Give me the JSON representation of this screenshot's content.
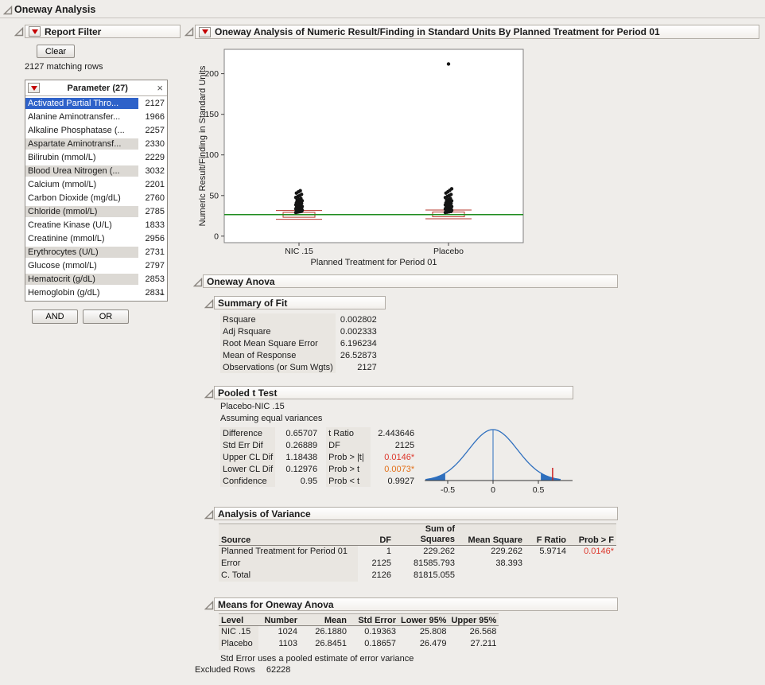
{
  "window": {
    "title": "Oneway Analysis"
  },
  "colors": {
    "selection_blue": "#2e62c9",
    "significant_red": "#dd372c",
    "significant_orange": "#e2711a",
    "grand_mean_green": "#1f8c1f",
    "box_red": "#b5372e",
    "curve_blue": "#2e6fbe",
    "red_triangle": "#c40000",
    "point_black": "#151515"
  },
  "filter": {
    "title": "Report Filter",
    "clear_label": "Clear",
    "matching_rows": "2127 matching rows",
    "list_title": "Parameter (27)",
    "close_glyph": "×",
    "scroll_down_glyph": "⌄",
    "and_label": "AND",
    "or_label": "OR",
    "items": [
      {
        "label": "Activated Partial Thro...",
        "count": "2127"
      },
      {
        "label": "Alanine Aminotransfer...",
        "count": "1966"
      },
      {
        "label": "Alkaline Phosphatase (...",
        "count": "2257"
      },
      {
        "label": "Aspartate Aminotransf...",
        "count": "2330"
      },
      {
        "label": "Bilirubin (mmol/L)",
        "count": "2229"
      },
      {
        "label": "Blood Urea Nitrogen (...",
        "count": "3032"
      },
      {
        "label": "Calcium (mmol/L)",
        "count": "2201"
      },
      {
        "label": "Carbon Dioxide (mg/dL)",
        "count": "2760"
      },
      {
        "label": "Chloride (mmol/L)",
        "count": "2785"
      },
      {
        "label": "Creatine Kinase (U/L)",
        "count": "1833"
      },
      {
        "label": "Creatinine (mmol/L)",
        "count": "2956"
      },
      {
        "label": "Erythrocytes (U/L)",
        "count": "2731"
      },
      {
        "label": "Glucose (mmol/L)",
        "count": "2797"
      },
      {
        "label": "Hematocrit (g/dL)",
        "count": "2853"
      },
      {
        "label": "Hemoglobin (g/dL)",
        "count": "2831"
      }
    ]
  },
  "report": {
    "title": "Oneway Analysis of Numeric Result/Finding in Standard Units By Planned Treatment for Period 01",
    "excluded_rows_label": "Excluded Rows",
    "excluded_rows_value": "62228"
  },
  "chart_data": [
    {
      "id": "oneway-plot",
      "type": "scatter",
      "title": "Oneway Analysis of Numeric Result/Finding in Standard Units By Planned Treatment for Period 01",
      "xlabel": "Planned Treatment for Period 01",
      "ylabel": "Numeric Result/Finding in Standard Units",
      "ylim": [
        -8,
        230
      ],
      "yticks": [
        0,
        50,
        100,
        150,
        200
      ],
      "grand_mean": 26.52873,
      "groups": [
        {
          "label": "NIC .15",
          "mean": 26.188,
          "box": {
            "low": 20.8,
            "q1": 23.2,
            "median": 26.2,
            "q3": 29.2,
            "high": 31.6
          },
          "dots": [
            29,
            29.6,
            30.1,
            30.5,
            30.9,
            31.2,
            31.6,
            32,
            32.4,
            32.8,
            33.1,
            33.5,
            33.9,
            34.3,
            34.8,
            35.2,
            35.6,
            36.1,
            36.6,
            37,
            37.5,
            38,
            38.6,
            39.2,
            39.8,
            40.5,
            41.2,
            42,
            42.8,
            43.6,
            44.5,
            45.5,
            46.5,
            47.6,
            48.8,
            50,
            51.5,
            53,
            54.5,
            56
          ]
        },
        {
          "label": "Placebo",
          "mean": 26.8451,
          "box": {
            "low": 21.4,
            "q1": 23.8,
            "median": 26.8,
            "q3": 29.8,
            "high": 32.2
          },
          "dots": [
            29,
            29.5,
            30,
            30.4,
            30.8,
            31.1,
            31.5,
            31.9,
            32.3,
            32.7,
            33,
            33.4,
            33.8,
            34.2,
            34.7,
            35.1,
            35.5,
            36,
            36.5,
            37,
            37.4,
            37.9,
            38.5,
            39.1,
            39.7,
            40.4,
            41.1,
            41.9,
            42.7,
            43.5,
            44.4,
            45.4,
            46.4,
            47.5,
            48.7,
            50,
            51.4,
            53,
            54.6,
            56.4,
            58.3,
            212
          ]
        }
      ]
    },
    {
      "id": "t-test-density",
      "type": "line",
      "center": 0,
      "sd": 0.269,
      "critical_halfwidth": 0.527,
      "observed_difference": 0.657,
      "xticks": [
        -0.5,
        0,
        0.5
      ],
      "xlim": [
        -0.75,
        0.78
      ]
    }
  ],
  "oneway_anova": {
    "title": "Oneway Anova",
    "summary_of_fit": {
      "title": "Summary of Fit",
      "rows": [
        {
          "label": "Rsquare",
          "value": "0.002802"
        },
        {
          "label": "Adj Rsquare",
          "value": "0.002333"
        },
        {
          "label": "Root Mean Square Error",
          "value": "6.196234"
        },
        {
          "label": "Mean of Response",
          "value": "26.52873"
        },
        {
          "label": "Observations (or Sum Wgts)",
          "value": "2127"
        }
      ]
    },
    "pooled_t_test": {
      "title": "Pooled t Test",
      "subtitle": "Placebo-NIC .15",
      "note": "Assuming equal variances",
      "left_rows": [
        {
          "label": "Difference",
          "value": "0.65707"
        },
        {
          "label": "Std Err Dif",
          "value": "0.26889"
        },
        {
          "label": "Upper CL Dif",
          "value": "1.18438"
        },
        {
          "label": "Lower CL Dif",
          "value": "0.12976"
        },
        {
          "label": "Confidence",
          "value": "0.95"
        }
      ],
      "right_rows": [
        {
          "label": "t Ratio",
          "value": "2.443646"
        },
        {
          "label": "DF",
          "value": "2125"
        },
        {
          "label": "Prob > |t|",
          "value": "0.0146*"
        },
        {
          "label": "Prob > t",
          "value": "0.0073*"
        },
        {
          "label": "Prob < t",
          "value": "0.9927"
        }
      ]
    },
    "analysis_of_variance": {
      "title": "Analysis of Variance",
      "columns": [
        "Source",
        "DF",
        "Sum of\nSquares",
        "Mean Square",
        "F Ratio",
        "Prob > F"
      ],
      "rows": [
        [
          "Planned Treatment for Period 01",
          "1",
          "229.262",
          "229.262",
          "5.9714",
          "0.0146*"
        ],
        [
          "Error",
          "2125",
          "81585.793",
          "38.393",
          "",
          ""
        ],
        [
          "C. Total",
          "2126",
          "81815.055",
          "",
          "",
          ""
        ]
      ]
    },
    "means": {
      "title": "Means for Oneway Anova",
      "columns": [
        "Level",
        "Number",
        "Mean",
        "Std Error",
        "Lower 95%",
        "Upper 95%"
      ],
      "rows": [
        [
          "NIC .15",
          "1024",
          "26.1880",
          "0.19363",
          "25.808",
          "26.568"
        ],
        [
          "Placebo",
          "1103",
          "26.8451",
          "0.18657",
          "26.479",
          "27.211"
        ]
      ],
      "footnote": "Std Error uses a pooled estimate of error variance"
    }
  }
}
